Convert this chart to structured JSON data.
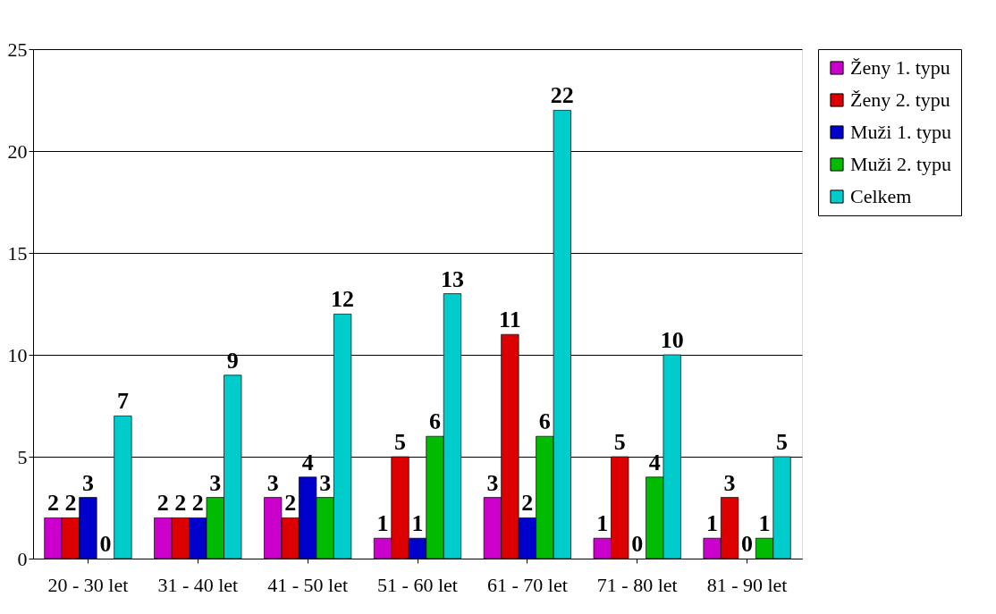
{
  "chart_data": {
    "type": "bar",
    "categories": [
      "20 - 30 let",
      "31 - 40 let",
      "41 - 50 let",
      "51 - 60 let",
      "61 - 70 let",
      "71 - 80 let",
      "81 - 90 let"
    ],
    "series": [
      {
        "name": "Ženy 1. typu",
        "color": "#cc00cc",
        "values": [
          2,
          2,
          3,
          1,
          3,
          1,
          1
        ]
      },
      {
        "name": "Ženy 2. typu",
        "color": "#dd0000",
        "values": [
          2,
          2,
          2,
          5,
          11,
          5,
          3
        ]
      },
      {
        "name": "Muži 1. typu",
        "color": "#0000cc",
        "values": [
          3,
          2,
          4,
          1,
          2,
          0,
          0
        ]
      },
      {
        "name": "Muži 2. typu",
        "color": "#00bb00",
        "values": [
          0,
          3,
          3,
          6,
          6,
          4,
          1
        ]
      },
      {
        "name": "Celkem",
        "color": "#00cccc",
        "values": [
          7,
          9,
          12,
          13,
          22,
          10,
          5
        ]
      }
    ],
    "ylim": [
      0,
      25
    ],
    "yticks": [
      0,
      5,
      10,
      15,
      20,
      25
    ],
    "grid": "y",
    "legend": "right",
    "data_labels": true
  }
}
